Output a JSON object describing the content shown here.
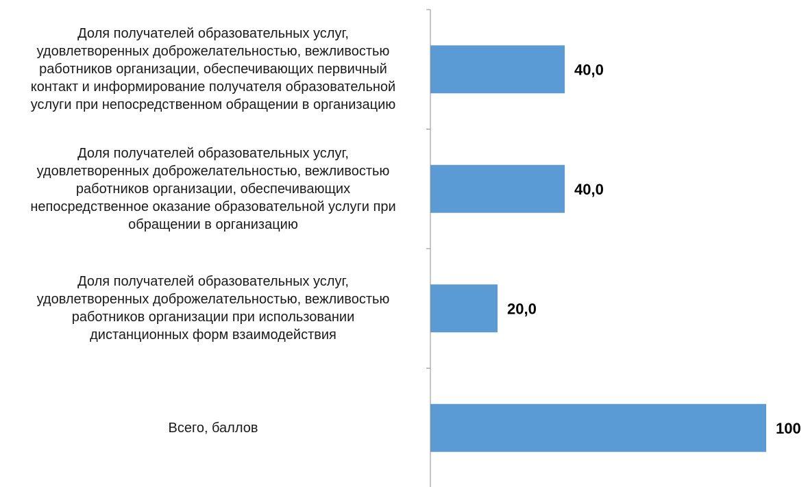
{
  "colors": {
    "bar": "#5b9bd5",
    "axis": "#8c8c8c",
    "text": "#1a1a1a"
  },
  "chart_data": {
    "type": "bar",
    "orientation": "horizontal",
    "categories": [
      "Доля получателей образовательных услуг, удовлетворенных доброжелательностью, вежливостью работников организации, обеспечивающих первичный контакт и информирование получателя образовательной услуги при непосредственном обращении в организацию",
      "Доля получателей образовательных услуг, удовлетворенных доброжелательностью, вежливостью работников организации, обеспечивающих непосредственное оказание образовательной услуги при обращении в организацию",
      "Доля получателей образовательных услуг, удовлетворенных доброжелательностью, вежливостью работников организации при использовании дистанционных форм взаимодействия",
      "Всего, баллов"
    ],
    "category_lines": [
      [
        "Доля получателей образовательных услуг,",
        "удовлетворенных доброжелательностью, вежливостью",
        "работников организации, обеспечивающих первичный",
        "контакт и информирование получателя образовательной",
        "услуги при непосредственном обращении в организацию"
      ],
      [
        "Доля получателей образовательных услуг,",
        "удовлетворенных доброжелательностью, вежливостью",
        "работников организации, обеспечивающих",
        "непосредственное оказание образовательной услуги при",
        "обращении в организацию"
      ],
      [
        "Доля получателей образовательных услуг,",
        "удовлетворенных доброжелательностью, вежливостью",
        "работников организации при использовании",
        "дистанционных форм взаимодействия"
      ],
      [
        "Всего, баллов"
      ]
    ],
    "values": [
      40,
      40,
      20,
      100
    ],
    "data_labels": [
      "40,0",
      "40,0",
      "20,0",
      "100"
    ],
    "xlim": [
      0,
      100
    ],
    "title": "",
    "xlabel": "",
    "ylabel": "",
    "grid": false,
    "legend": "none"
  }
}
